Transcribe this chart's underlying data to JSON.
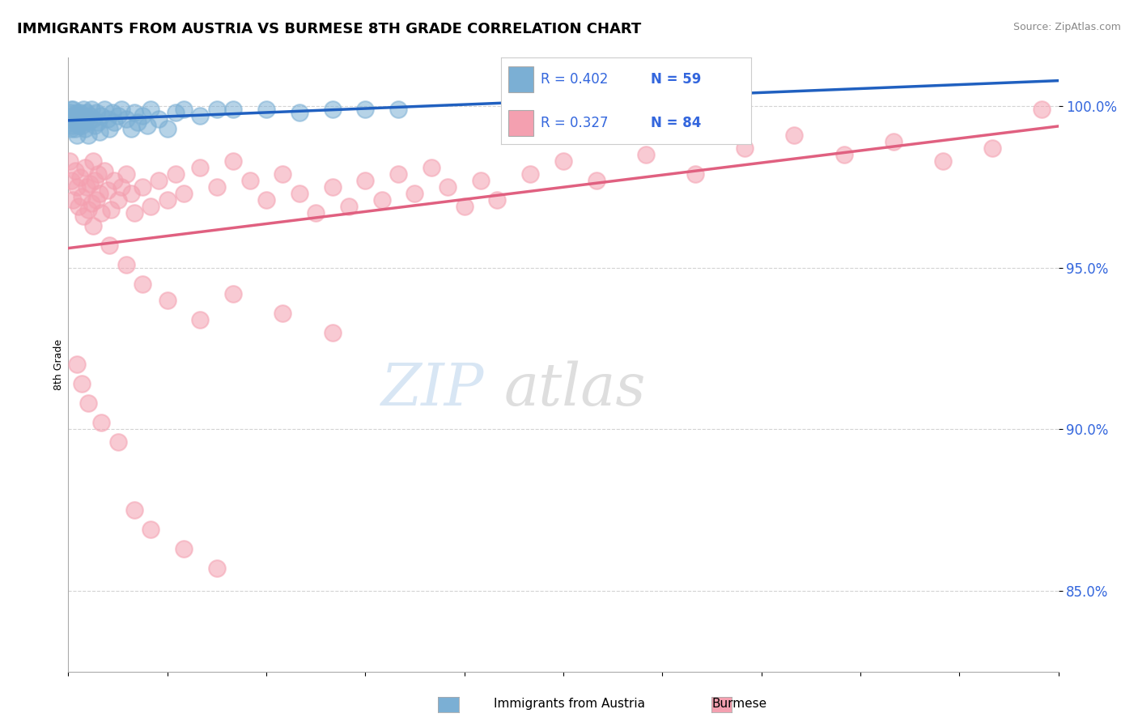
{
  "title": "IMMIGRANTS FROM AUSTRIA VS BURMESE 8TH GRADE CORRELATION CHART",
  "source": "Source: ZipAtlas.com",
  "ylabel": "8th Grade",
  "xmin": 0.0,
  "xmax": 0.6,
  "ymin": 0.825,
  "ymax": 1.015,
  "yticks": [
    0.85,
    0.9,
    0.95,
    1.0
  ],
  "ytick_labels": [
    "85.0%",
    "90.0%",
    "95.0%",
    "100.0%"
  ],
  "blue_R": 0.402,
  "blue_N": 59,
  "pink_R": 0.327,
  "pink_N": 84,
  "blue_color": "#7BAFD4",
  "pink_color": "#F4A0B0",
  "blue_line_color": "#2060C0",
  "pink_line_color": "#E06080",
  "legend_color": "#3366DD",
  "blue_x": [
    0.001,
    0.001,
    0.002,
    0.002,
    0.002,
    0.003,
    0.003,
    0.003,
    0.004,
    0.004,
    0.005,
    0.005,
    0.005,
    0.006,
    0.006,
    0.007,
    0.007,
    0.008,
    0.008,
    0.009,
    0.01,
    0.01,
    0.011,
    0.012,
    0.012,
    0.013,
    0.014,
    0.015,
    0.016,
    0.017,
    0.018,
    0.019,
    0.02,
    0.022,
    0.024,
    0.025,
    0.027,
    0.028,
    0.03,
    0.032,
    0.035,
    0.038,
    0.04,
    0.042,
    0.045,
    0.048,
    0.05,
    0.055,
    0.06,
    0.065,
    0.07,
    0.08,
    0.09,
    0.1,
    0.12,
    0.14,
    0.16,
    0.18,
    0.2
  ],
  "blue_y": [
    0.998,
    0.995,
    0.999,
    0.996,
    0.993,
    0.997,
    0.994,
    0.999,
    0.996,
    0.993,
    0.998,
    0.995,
    0.991,
    0.997,
    0.994,
    0.998,
    0.995,
    0.997,
    0.994,
    0.999,
    0.996,
    0.993,
    0.998,
    0.995,
    0.991,
    0.997,
    0.999,
    0.996,
    0.994,
    0.998,
    0.995,
    0.992,
    0.997,
    0.999,
    0.996,
    0.993,
    0.998,
    0.995,
    0.997,
    0.999,
    0.996,
    0.993,
    0.998,
    0.995,
    0.997,
    0.994,
    0.999,
    0.996,
    0.993,
    0.998,
    0.999,
    0.997,
    0.999,
    0.999,
    0.999,
    0.998,
    0.999,
    0.999,
    0.999
  ],
  "pink_x": [
    0.001,
    0.002,
    0.003,
    0.004,
    0.005,
    0.006,
    0.007,
    0.008,
    0.009,
    0.01,
    0.011,
    0.012,
    0.013,
    0.014,
    0.015,
    0.016,
    0.017,
    0.018,
    0.019,
    0.02,
    0.022,
    0.024,
    0.026,
    0.028,
    0.03,
    0.032,
    0.035,
    0.038,
    0.04,
    0.045,
    0.05,
    0.055,
    0.06,
    0.065,
    0.07,
    0.08,
    0.09,
    0.1,
    0.11,
    0.12,
    0.13,
    0.14,
    0.15,
    0.16,
    0.17,
    0.18,
    0.19,
    0.2,
    0.21,
    0.22,
    0.23,
    0.24,
    0.25,
    0.26,
    0.28,
    0.3,
    0.32,
    0.35,
    0.38,
    0.41,
    0.44,
    0.47,
    0.5,
    0.53,
    0.56,
    0.59,
    0.015,
    0.025,
    0.035,
    0.045,
    0.06,
    0.08,
    0.1,
    0.13,
    0.16,
    0.005,
    0.008,
    0.012,
    0.02,
    0.03,
    0.04,
    0.05,
    0.07,
    0.09
  ],
  "pink_y": [
    0.983,
    0.977,
    0.971,
    0.98,
    0.975,
    0.969,
    0.978,
    0.972,
    0.966,
    0.981,
    0.975,
    0.968,
    0.976,
    0.97,
    0.983,
    0.977,
    0.971,
    0.979,
    0.973,
    0.967,
    0.98,
    0.974,
    0.968,
    0.977,
    0.971,
    0.975,
    0.979,
    0.973,
    0.967,
    0.975,
    0.969,
    0.977,
    0.971,
    0.979,
    0.973,
    0.981,
    0.975,
    0.983,
    0.977,
    0.971,
    0.979,
    0.973,
    0.967,
    0.975,
    0.969,
    0.977,
    0.971,
    0.979,
    0.973,
    0.981,
    0.975,
    0.969,
    0.977,
    0.971,
    0.979,
    0.983,
    0.977,
    0.985,
    0.979,
    0.987,
    0.991,
    0.985,
    0.989,
    0.983,
    0.987,
    0.999,
    0.963,
    0.957,
    0.951,
    0.945,
    0.94,
    0.934,
    0.942,
    0.936,
    0.93,
    0.92,
    0.914,
    0.908,
    0.902,
    0.896,
    0.875,
    0.869,
    0.863,
    0.857
  ]
}
